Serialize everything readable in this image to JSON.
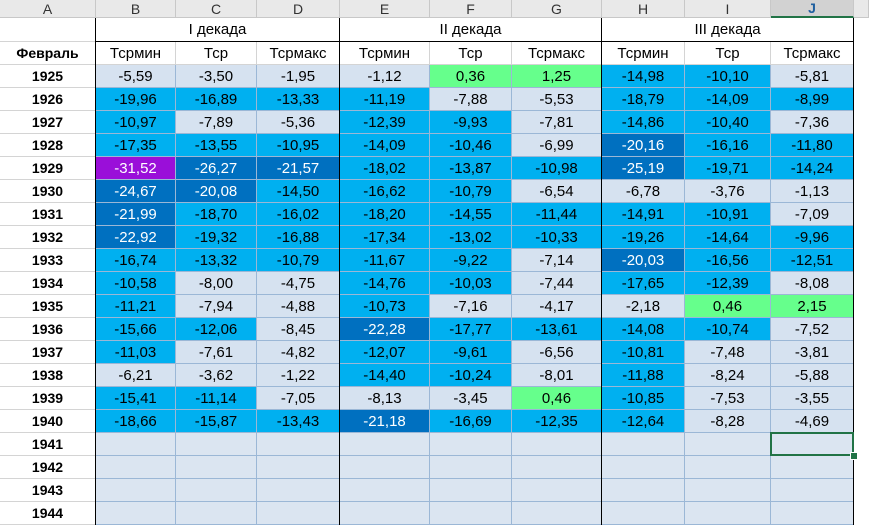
{
  "columns": [
    "A",
    "B",
    "C",
    "D",
    "E",
    "F",
    "G",
    "H",
    "I",
    "J"
  ],
  "selected_column": "J",
  "header": {
    "row_label": "Февраль",
    "decades": [
      "I декада",
      "II декада",
      "III декада"
    ],
    "subheaders": [
      "Тсрмин",
      "Тср",
      "Тсрмакс",
      "Тсрмин",
      "Тср",
      "Тсрмакс",
      "Тсрмин",
      "Тср",
      "Тсрмакс"
    ]
  },
  "years": [
    "1925",
    "1926",
    "1927",
    "1928",
    "1929",
    "1930",
    "1931",
    "1932",
    "1933",
    "1934",
    "1935",
    "1936",
    "1937",
    "1938",
    "1939",
    "1940",
    "1941",
    "1942",
    "1943",
    "1944"
  ],
  "values": [
    [
      "-5,59",
      "-3,50",
      "-1,95",
      "-1,12",
      "0,36",
      "1,25",
      "-14,98",
      "-10,10",
      "-5,81"
    ],
    [
      "-19,96",
      "-16,89",
      "-13,33",
      "-11,19",
      "-7,88",
      "-5,53",
      "-18,79",
      "-14,09",
      "-8,99"
    ],
    [
      "-10,97",
      "-7,89",
      "-5,36",
      "-12,39",
      "-9,93",
      "-7,81",
      "-14,86",
      "-10,40",
      "-7,36"
    ],
    [
      "-17,35",
      "-13,55",
      "-10,95",
      "-14,09",
      "-10,46",
      "-6,99",
      "-20,16",
      "-16,16",
      "-11,80"
    ],
    [
      "-31,52",
      "-26,27",
      "-21,57",
      "-18,02",
      "-13,87",
      "-10,98",
      "-25,19",
      "-19,71",
      "-14,24"
    ],
    [
      "-24,67",
      "-20,08",
      "-14,50",
      "-16,62",
      "-10,79",
      "-6,54",
      "-6,78",
      "-3,76",
      "-1,13"
    ],
    [
      "-21,99",
      "-18,70",
      "-16,02",
      "-18,20",
      "-14,55",
      "-11,44",
      "-14,91",
      "-10,91",
      "-7,09"
    ],
    [
      "-22,92",
      "-19,32",
      "-16,88",
      "-17,34",
      "-13,02",
      "-10,33",
      "-19,26",
      "-14,64",
      "-9,96"
    ],
    [
      "-16,74",
      "-13,32",
      "-10,79",
      "-11,67",
      "-9,22",
      "-7,14",
      "-20,03",
      "-16,56",
      "-12,51"
    ],
    [
      "-10,58",
      "-8,00",
      "-4,75",
      "-14,76",
      "-10,03",
      "-7,44",
      "-17,65",
      "-12,39",
      "-8,08"
    ],
    [
      "-11,21",
      "-7,94",
      "-4,88",
      "-10,73",
      "-7,16",
      "-4,17",
      "-2,18",
      "0,46",
      "2,15"
    ],
    [
      "-15,66",
      "-12,06",
      "-8,45",
      "-22,28",
      "-17,77",
      "-13,61",
      "-14,08",
      "-10,74",
      "-7,52"
    ],
    [
      "-11,03",
      "-7,61",
      "-4,82",
      "-12,07",
      "-9,61",
      "-6,56",
      "-10,81",
      "-7,48",
      "-3,81"
    ],
    [
      "-6,21",
      "-3,62",
      "-1,22",
      "-14,40",
      "-10,24",
      "-8,01",
      "-11,88",
      "-8,24",
      "-5,88"
    ],
    [
      "-15,41",
      "-11,14",
      "-7,05",
      "-8,13",
      "-3,45",
      "0,46",
      "-10,85",
      "-7,53",
      "-3,55"
    ],
    [
      "-18,66",
      "-15,87",
      "-13,43",
      "-21,18",
      "-16,69",
      "-12,35",
      "-12,64",
      "-8,28",
      "-4,69"
    ]
  ],
  "cell_colors": {
    "light": "#d6e2f0",
    "cyan": "#00b0f0",
    "dark": "#0070c0",
    "purple": "#9a0fd9",
    "green": "#66ff8c",
    "empty": "#dbe5f1"
  }
}
